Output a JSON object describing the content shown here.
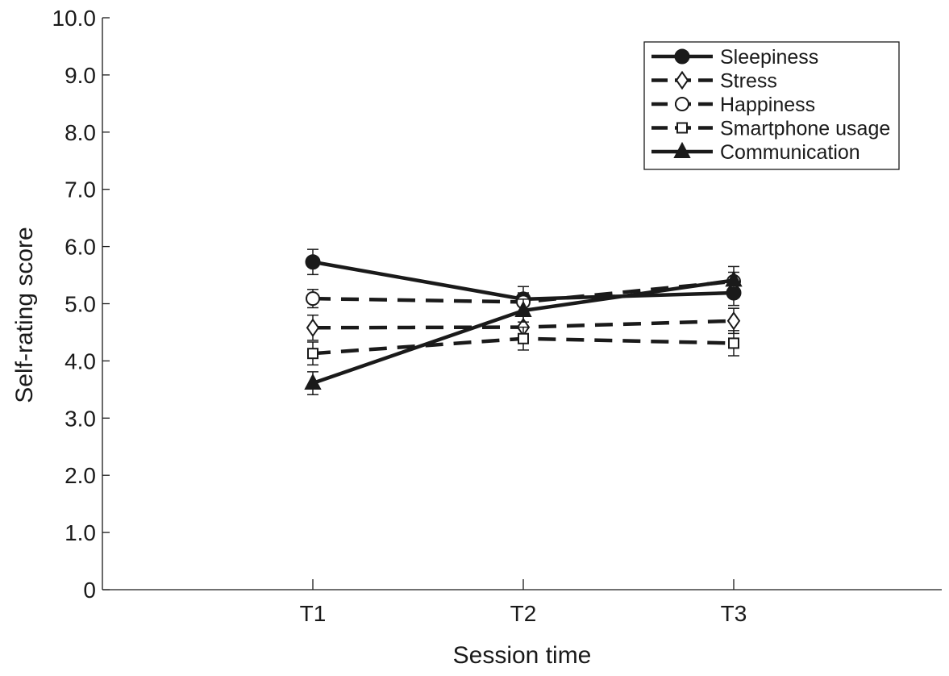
{
  "chart_data": {
    "type": "line",
    "xlabel": "Session time",
    "ylabel": "Self-rating score",
    "categories": [
      "T1",
      "T2",
      "T3"
    ],
    "ylim": [
      0,
      10
    ],
    "yticks": [
      "0",
      "1.0",
      "2.0",
      "3.0",
      "4.0",
      "5.0",
      "6.0",
      "7.0",
      "8.0",
      "9.0",
      "10.0"
    ],
    "grid": false,
    "legend_position": "top-right",
    "series": [
      {
        "name": "Sleepiness",
        "values": [
          5.73,
          5.08,
          5.19
        ],
        "errors": [
          0.22,
          0.22,
          0.22
        ],
        "marker": "circle-filled",
        "line": "solid"
      },
      {
        "name": "Stress",
        "values": [
          4.58,
          4.59,
          4.7
        ],
        "errors": [
          0.22,
          0.22,
          0.22
        ],
        "marker": "diamond-open",
        "line": "dashed"
      },
      {
        "name": "Happiness",
        "values": [
          5.09,
          5.03,
          5.39
        ],
        "errors": [
          0.16,
          0.16,
          0.16
        ],
        "marker": "circle-open",
        "line": "dashed"
      },
      {
        "name": "Smartphone usage",
        "values": [
          4.13,
          4.39,
          4.31
        ],
        "errors": [
          0.2,
          0.2,
          0.22
        ],
        "marker": "square-open",
        "line": "dashed"
      },
      {
        "name": "Communication",
        "values": [
          3.61,
          4.88,
          5.41
        ],
        "errors": [
          0.2,
          0.2,
          0.24
        ],
        "marker": "triangle-filled",
        "line": "solid"
      }
    ]
  }
}
